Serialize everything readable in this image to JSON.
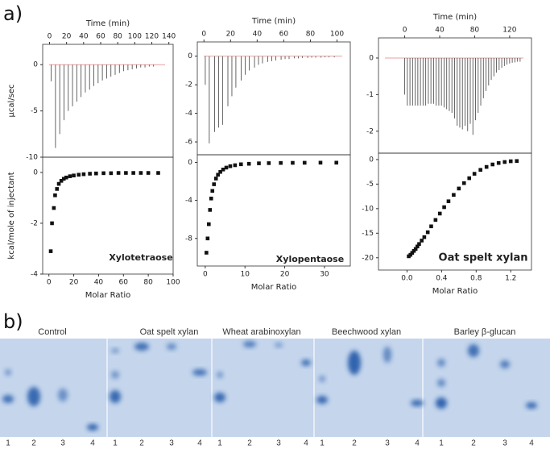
{
  "panel_labels": [
    "a)",
    "b)"
  ],
  "chart_data": [
    {
      "type": "stem",
      "x_label": "Time (min)",
      "y_label": "µcal/sec",
      "x": [
        2,
        7,
        12,
        17,
        22,
        27,
        32,
        37,
        42,
        47,
        52,
        57,
        62,
        67,
        72,
        77,
        82,
        87,
        92,
        97,
        102,
        107,
        112,
        117,
        122
      ],
      "values": [
        -1.8,
        -9,
        -7.5,
        -6,
        -5,
        -4.5,
        -4,
        -3.5,
        -3,
        -2.7,
        -2.3,
        -2,
        -1.7,
        -1.5,
        -1.3,
        -1.1,
        -0.9,
        -0.7,
        -0.6,
        -0.5,
        -0.4,
        -0.3,
        -0.3,
        -0.2,
        -0.2
      ],
      "xlim": [
        -8,
        145
      ],
      "ylim": [
        -10,
        2.2
      ],
      "xticks": [
        0,
        20,
        40,
        60,
        80,
        100,
        120,
        140
      ],
      "yticks": [
        0,
        -5,
        -10
      ]
    },
    {
      "type": "scatter",
      "x_label": "Molar Ratio",
      "y_label": "kcal/mole of injectant",
      "annotation": "Xylotetraose",
      "x": [
        1.5,
        2.5,
        4,
        5,
        6.5,
        8,
        10,
        12,
        14,
        17,
        20,
        24,
        28,
        33,
        38,
        44,
        50,
        56,
        62,
        68,
        74,
        80,
        88
      ],
      "values": [
        -3.1,
        -2.0,
        -1.4,
        -0.9,
        -0.65,
        -0.45,
        -0.33,
        -0.25,
        -0.2,
        -0.15,
        -0.12,
        -0.09,
        -0.07,
        -0.05,
        -0.04,
        -0.03,
        -0.03,
        -0.02,
        -0.02,
        -0.02,
        -0.02,
        -0.02,
        -0.02
      ],
      "xlim": [
        -5,
        100
      ],
      "ylim": [
        -4,
        0.6
      ],
      "xticks": [
        0,
        20,
        40,
        60,
        80,
        100
      ],
      "yticks": [
        0,
        -2,
        -4
      ]
    },
    {
      "type": "stem",
      "x_label": "Time (min)",
      "x": [
        1,
        4,
        8,
        11,
        14,
        18,
        21,
        24,
        28,
        31,
        34,
        38,
        41,
        44,
        48,
        51,
        54,
        58,
        61,
        64,
        68,
        71,
        74,
        78,
        81,
        84,
        88,
        91,
        94,
        98
      ],
      "values": [
        -2,
        -6.1,
        -5.3,
        -5,
        -4.8,
        -3.5,
        -2.8,
        -2.2,
        -1.7,
        -1.3,
        -1.0,
        -0.8,
        -0.6,
        -0.5,
        -0.4,
        -0.35,
        -0.3,
        -0.25,
        -0.2,
        -0.2,
        -0.15,
        -0.15,
        -0.12,
        -0.12,
        -0.1,
        -0.1,
        -0.1,
        -0.08,
        -0.08,
        -0.08
      ],
      "xlim": [
        -5,
        110
      ],
      "ylim": [
        -6.9,
        1.0
      ],
      "xticks": [
        0,
        20,
        40,
        60,
        80,
        100
      ],
      "yticks": [
        0,
        -2,
        -4,
        -6
      ]
    },
    {
      "type": "scatter",
      "x_label": "Molar Ratio",
      "annotation": "Xylopentaose",
      "x": [
        0.3,
        0.6,
        0.9,
        1.2,
        1.5,
        1.8,
        2.2,
        2.7,
        3.2,
        3.8,
        4.5,
        5.3,
        6.3,
        7.5,
        9,
        11,
        13.5,
        16,
        19,
        22,
        25,
        29,
        33
      ],
      "values": [
        -9.5,
        -8.0,
        -6.5,
        -5.0,
        -3.8,
        -3.0,
        -2.3,
        -1.7,
        -1.3,
        -1.0,
        -0.75,
        -0.55,
        -0.4,
        -0.3,
        -0.2,
        -0.15,
        -0.1,
        -0.08,
        -0.06,
        -0.05,
        -0.04,
        -0.03,
        -0.03
      ],
      "xlim": [
        -2,
        36.5
      ],
      "ylim": [
        -10.9,
        0.8
      ],
      "xticks": [
        0,
        10,
        20,
        30
      ],
      "yticks": [
        0,
        -4,
        -8
      ]
    },
    {
      "type": "stem",
      "x_label": "Time (min)",
      "x": [
        0,
        3,
        6,
        9,
        12,
        15,
        18,
        21,
        24,
        27,
        30,
        33,
        36,
        39,
        42,
        45,
        48,
        51,
        54,
        57,
        60,
        63,
        66,
        69,
        72,
        75,
        78,
        81,
        84,
        87,
        90,
        93,
        96,
        99,
        102,
        105,
        108,
        111,
        114,
        117,
        120,
        123,
        126,
        129,
        132
      ],
      "values": [
        -1.0,
        -1.3,
        -1.3,
        -1.3,
        -1.3,
        -1.3,
        -1.3,
        -1.3,
        -1.3,
        -1.25,
        -1.25,
        -1.25,
        -1.3,
        -1.3,
        -1.3,
        -1.35,
        -1.4,
        -1.45,
        -1.5,
        -1.65,
        -1.85,
        -1.9,
        -1.95,
        -1.85,
        -2.0,
        -1.8,
        -2.1,
        -1.7,
        -1.5,
        -1.3,
        -1.1,
        -0.9,
        -0.75,
        -0.6,
        -0.5,
        -0.4,
        -0.33,
        -0.27,
        -0.22,
        -0.18,
        -0.15,
        -0.13,
        -0.12,
        -0.1,
        -0.1
      ],
      "xlim": [
        -30,
        145
      ],
      "ylim": [
        -2.6,
        0.55
      ],
      "xticks": [
        0,
        40,
        80,
        120
      ],
      "yticks": [
        0,
        -1,
        -2
      ]
    },
    {
      "type": "scatter",
      "x_label": "Molar Ratio",
      "annotation": "Oat spelt xylan",
      "x": [
        0.02,
        0.04,
        0.06,
        0.08,
        0.1,
        0.12,
        0.14,
        0.17,
        0.2,
        0.24,
        0.28,
        0.33,
        0.38,
        0.43,
        0.48,
        0.54,
        0.6,
        0.66,
        0.72,
        0.78,
        0.85,
        0.92,
        0.99,
        1.06,
        1.13,
        1.2,
        1.27
      ],
      "values": [
        -19.7,
        -19.4,
        -19.0,
        -18.6,
        -18.2,
        -17.7,
        -17.2,
        -16.5,
        -15.8,
        -14.8,
        -13.6,
        -12.3,
        -11.0,
        -9.7,
        -8.5,
        -7.2,
        -5.9,
        -4.8,
        -3.8,
        -2.9,
        -2.1,
        -1.5,
        -1.0,
        -0.7,
        -0.5,
        -0.35,
        -0.3
      ],
      "xlim": [
        -0.33,
        1.44
      ],
      "ylim": [
        -22.5,
        1.3
      ],
      "xticks": [
        {
          "value": 0,
          "label": "0.0"
        },
        0.4,
        0.8,
        1.2
      ],
      "yticks": [
        0,
        -5,
        -10,
        -15,
        -20
      ]
    }
  ],
  "gel": {
    "groups": [
      {
        "label": "Control",
        "lanes": [
          "1",
          "2",
          "3",
          "4"
        ]
      },
      {
        "label": "Oat spelt xylan",
        "lanes": [
          "1",
          "2",
          "3",
          "4"
        ]
      },
      {
        "label": "Wheat arabinoxylan",
        "lanes": [
          "1",
          "2",
          "3",
          "4"
        ]
      },
      {
        "label": "Beechwood xylan",
        "lanes": [
          "1",
          "2",
          "3",
          "4"
        ]
      },
      {
        "label": "Barley β-glucan",
        "lanes": [
          "1",
          "2",
          "3",
          "4"
        ]
      }
    ]
  }
}
